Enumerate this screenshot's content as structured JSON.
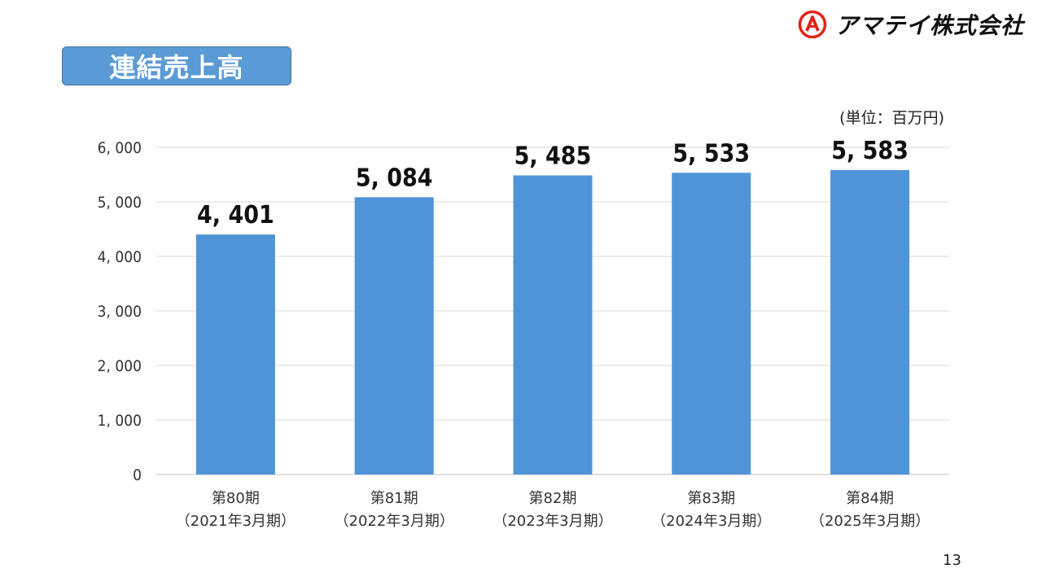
{
  "slide": {
    "title": "連結売上高",
    "company": "アマテイ株式会社",
    "logo_icon": "circle-a-logo-icon",
    "unit": "(単位：百万円)",
    "page_number": "13",
    "title_box_color": "#5b9bd5",
    "bar_color": "#4f94d9"
  },
  "chart_data": {
    "type": "bar",
    "categories": [
      [
        "第80期",
        "（2021年3月期）"
      ],
      [
        "第81期",
        "（2022年3月期）"
      ],
      [
        "第82期",
        "（2023年3月期）"
      ],
      [
        "第83期",
        "（2024年3月期）"
      ],
      [
        "第84期",
        "（2025年3月期）"
      ]
    ],
    "values": [
      4401,
      5084,
      5485,
      5533,
      5583
    ],
    "data_labels": [
      "4, 401",
      "5, 084",
      "5, 485",
      "5, 533",
      "5, 583"
    ],
    "ylim": [
      0,
      6000
    ],
    "yticks": [
      0,
      1000,
      2000,
      3000,
      4000,
      5000,
      6000
    ],
    "ytick_labels": [
      "0",
      "1, 000",
      "2, 000",
      "3, 000",
      "4, 000",
      "5, 000",
      "6, 000"
    ],
    "grid": true,
    "title": "",
    "xlabel": "",
    "ylabel": ""
  }
}
